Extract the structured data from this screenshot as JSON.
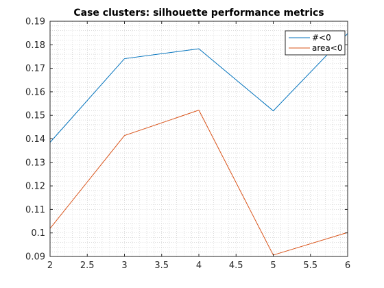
{
  "chart_data": {
    "type": "line",
    "title": "Case clusters: silhouette performance metrics",
    "xlabel": "",
    "ylabel": "",
    "x": [
      2,
      3,
      4,
      5,
      6
    ],
    "xlim": [
      2,
      6
    ],
    "ylim": [
      0.09,
      0.19
    ],
    "xticks": [
      2,
      2.5,
      3,
      3.5,
      4,
      4.5,
      5,
      5.5,
      6
    ],
    "xtick_labels": [
      "2",
      "2.5",
      "3",
      "3.5",
      "4",
      "4.5",
      "5",
      "5.5",
      "6"
    ],
    "yticks": [
      0.09,
      0.1,
      0.11,
      0.12,
      0.13,
      0.14,
      0.15,
      0.16,
      0.17,
      0.18,
      0.19
    ],
    "ytick_labels": [
      "0.09",
      "0.1",
      "0.11",
      "0.12",
      "0.13",
      "0.14",
      "0.15",
      "0.16",
      "0.17",
      "0.18",
      "0.19"
    ],
    "grid": "minor dotted",
    "legend_position": "top-right",
    "series": [
      {
        "name": "#<0",
        "color": "#0072BD",
        "values": [
          0.1385,
          0.1741,
          0.1783,
          0.1519,
          0.1848
        ]
      },
      {
        "name": "area<0",
        "color": "#D95319",
        "values": [
          0.1019,
          0.1414,
          0.1522,
          0.0906,
          0.1002
        ]
      }
    ]
  }
}
